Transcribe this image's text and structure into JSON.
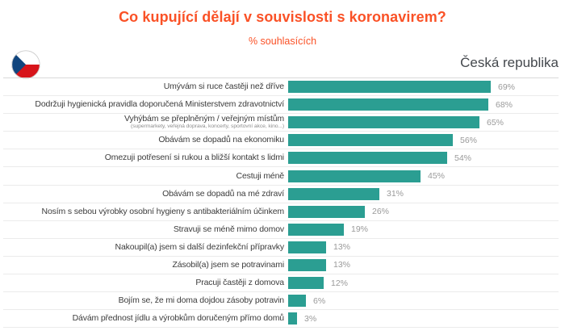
{
  "header": {
    "title": "Co kupující dělají v souvislosti s koronavirem?",
    "subtitle": "% souhlasících",
    "country": "Česká republika"
  },
  "colors": {
    "accent_orange": "#fa5126",
    "bar_teal": "#2b9e92",
    "category_text": "#3c3c3c",
    "value_text": "#9a9a9a",
    "separator": "#ebebeb"
  },
  "chart_data": {
    "type": "bar",
    "orientation": "horizontal",
    "title": "Co kupující dělají v souvislosti s koronavirem?",
    "subtitle": "% souhlasících",
    "group_label": "Česká republika",
    "unit": "%",
    "xlabel": "",
    "ylabel": "",
    "grid": "row-separators-only",
    "legend": "none",
    "categories": [
      "Umývám si ruce častěji než dříve",
      "Dodržuji hygienická pravidla doporučená Ministerstvem zdravotnictví",
      "Vyhýbám se přeplněným / veřejným místům",
      "Obávám se dopadů na ekonomiku",
      "Omezuji potřesení si rukou a bližší kontakt s lidmi",
      "Cestuji méně",
      "Obávám se dopadů na mé zdraví",
      "Nosím s sebou výrobky osobní hygieny s antibakteriálním účinkem",
      "Stravuji se méně mimo domov",
      "Nakoupil(a) jsem si další dezinfekční přípravky",
      "Zásobil(a) jsem se potravinami",
      "Pracuji častěji z domova",
      "Bojím se, že mi doma dojdou zásoby potravin",
      "Dávám přednost jídlu a výrobkům doručeným přímo domů"
    ],
    "category_notes": {
      "2": "(supermarkety, veřejná doprava, koncerty, sportovní akce, kino...)"
    },
    "values": [
      69,
      68,
      65,
      56,
      54,
      45,
      31,
      26,
      19,
      13,
      13,
      12,
      6,
      3
    ],
    "value_labels": [
      "69%",
      "68%",
      "65%",
      "56%",
      "54%",
      "45%",
      "31%",
      "26%",
      "19%",
      "13%",
      "13%",
      "12%",
      "6%",
      "3%"
    ]
  }
}
